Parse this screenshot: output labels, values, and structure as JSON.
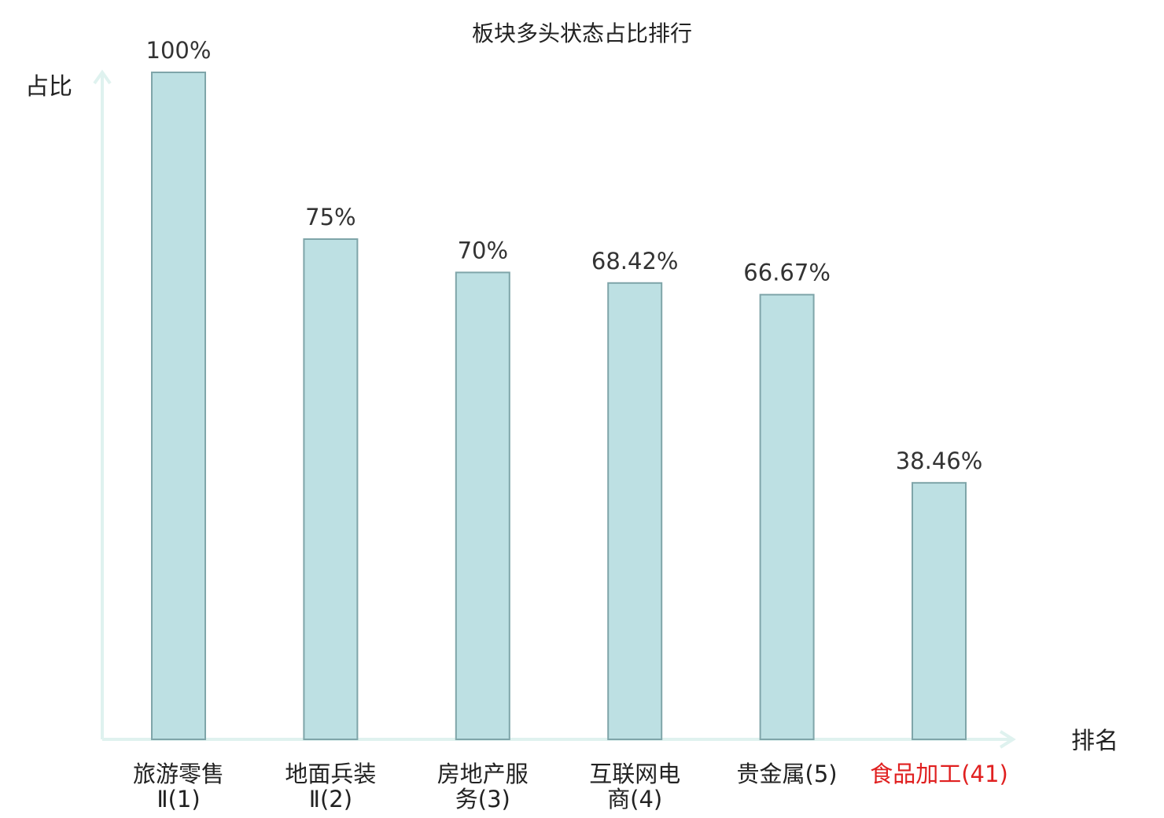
{
  "chart_data": {
    "type": "bar",
    "title": "板块多头状态占比排行",
    "ylabel": "占比",
    "xlabel": "排名",
    "categories": [
      {
        "name_lines": [
          "旅游零售",
          "Ⅱ(1)"
        ],
        "highlight": false
      },
      {
        "name_lines": [
          "地面兵装",
          "Ⅱ(2)"
        ],
        "highlight": false
      },
      {
        "name_lines": [
          "房地产服",
          "务(3)"
        ],
        "highlight": false
      },
      {
        "name_lines": [
          "互联网电",
          "商(4)"
        ],
        "highlight": false
      },
      {
        "name_lines": [
          "贵金属(5)"
        ],
        "highlight": false
      },
      {
        "name_lines": [
          "食品加工(41)"
        ],
        "highlight": true
      }
    ],
    "values": [
      100,
      75,
      70,
      68.42,
      66.67,
      38.46
    ],
    "value_labels": [
      "100%",
      "75%",
      "70%",
      "68.42%",
      "66.67%",
      "38.46%"
    ],
    "ylim": [
      0,
      100
    ],
    "grid": false,
    "colors": {
      "bar_fill": "#bde0e3",
      "bar_stroke": "#7fa5a9",
      "axis": "#dff2ef",
      "highlight_text": "#e02020",
      "text": "#333333"
    }
  }
}
